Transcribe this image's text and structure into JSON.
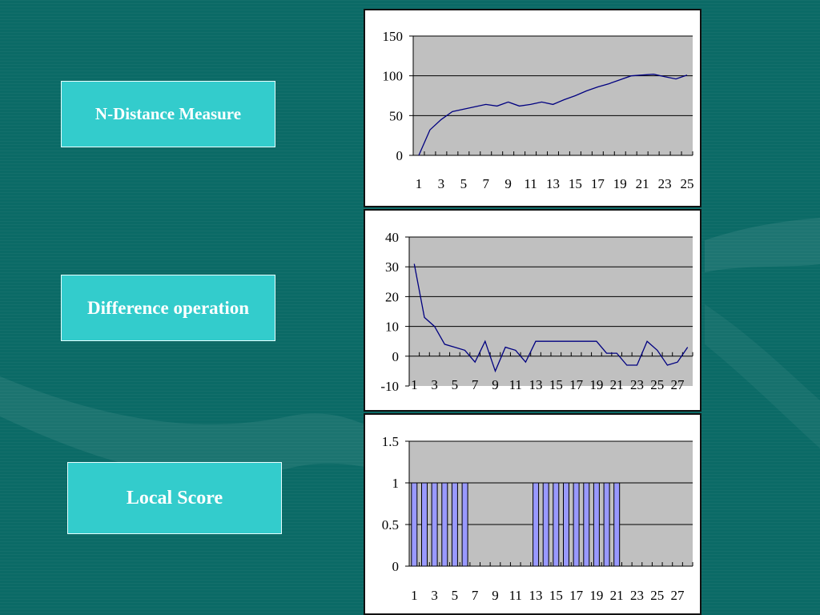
{
  "labels": {
    "n_distance": "N-Distance Measure",
    "difference": "Difference operation",
    "local_score": "Local Score"
  },
  "colors": {
    "background": "#0b6a66",
    "label_box": "#33cccc",
    "plot_area": "#c0c0c0",
    "line_series": "#000080",
    "bar_fill": "#9999ff"
  },
  "chart_data": [
    {
      "type": "line",
      "title": "",
      "xlabel": "",
      "ylabel": "",
      "x": [
        1,
        2,
        3,
        4,
        5,
        6,
        7,
        8,
        9,
        10,
        11,
        12,
        13,
        14,
        15,
        16,
        17,
        18,
        19,
        20,
        21,
        22,
        23,
        24,
        25
      ],
      "series": [
        {
          "values": [
            0,
            32,
            45,
            55,
            58,
            61,
            64,
            62,
            67,
            62,
            64,
            67,
            64,
            70,
            75,
            81,
            86,
            90,
            95,
            100,
            101,
            102,
            99,
            96,
            101
          ]
        }
      ],
      "x_tick_labels": [
        "1",
        "3",
        "5",
        "7",
        "9",
        "11",
        "13",
        "15",
        "17",
        "19",
        "21",
        "23",
        "25"
      ],
      "y_tick_labels": [
        "0",
        "50",
        "100",
        "150"
      ],
      "ylim": [
        0,
        150
      ],
      "grid": true,
      "legend": "none"
    },
    {
      "type": "line",
      "title": "",
      "xlabel": "",
      "ylabel": "",
      "x": [
        1,
        2,
        3,
        4,
        5,
        6,
        7,
        8,
        9,
        10,
        11,
        12,
        13,
        14,
        15,
        16,
        17,
        18,
        19,
        20,
        21,
        22,
        23,
        24,
        25,
        26,
        27,
        28
      ],
      "series": [
        {
          "values": [
            31,
            13,
            10,
            4,
            3,
            2,
            -2,
            5,
            -5,
            3,
            2,
            -2,
            5,
            5,
            5,
            5,
            5,
            5,
            5,
            1,
            1,
            -3,
            -3,
            5,
            2,
            -3,
            -2,
            3
          ]
        }
      ],
      "x_tick_labels": [
        "1",
        "3",
        "5",
        "7",
        "9",
        "11",
        "13",
        "15",
        "17",
        "19",
        "21",
        "23",
        "25",
        "27"
      ],
      "y_tick_labels": [
        "-10",
        "0",
        "10",
        "20",
        "30",
        "40"
      ],
      "ylim": [
        -10,
        40
      ],
      "grid": true,
      "legend": "none"
    },
    {
      "type": "bar",
      "title": "",
      "xlabel": "",
      "ylabel": "",
      "categories": [
        "1",
        "2",
        "3",
        "4",
        "5",
        "6",
        "7",
        "8",
        "9",
        "10",
        "11",
        "12",
        "13",
        "14",
        "15",
        "16",
        "17",
        "18",
        "19",
        "20",
        "21",
        "22",
        "23",
        "24",
        "25",
        "26",
        "27",
        "28"
      ],
      "values": [
        1,
        1,
        1,
        1,
        1,
        1,
        0,
        0,
        0,
        0,
        0,
        0,
        1,
        1,
        1,
        1,
        1,
        1,
        1,
        1,
        1,
        0,
        0,
        0,
        0,
        0,
        0,
        0
      ],
      "x_tick_labels": [
        "1",
        "3",
        "5",
        "7",
        "9",
        "11",
        "13",
        "15",
        "17",
        "19",
        "21",
        "23",
        "25",
        "27"
      ],
      "y_tick_labels": [
        "0",
        "0.5",
        "1",
        "1.5"
      ],
      "ylim": [
        0,
        1.5
      ],
      "grid": true,
      "legend": "none"
    }
  ]
}
